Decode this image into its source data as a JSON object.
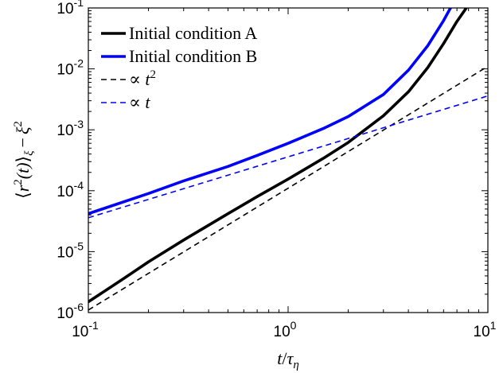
{
  "chart_data": {
    "type": "line",
    "title": "",
    "xlabel": "t/τη",
    "ylabel": "⟨r²(t)⟩ξ − ξ²",
    "x_scale": "log",
    "y_scale": "log",
    "xlim": [
      0.1,
      10
    ],
    "ylim": [
      1e-06,
      0.1
    ],
    "x_ticks": [
      {
        "value": 0.1,
        "base": "10",
        "exp": "-1"
      },
      {
        "value": 1,
        "base": "10",
        "exp": "0"
      },
      {
        "value": 10,
        "base": "10",
        "exp": "1"
      }
    ],
    "y_ticks": [
      {
        "value": 1e-06,
        "base": "10",
        "exp": "-6"
      },
      {
        "value": 1e-05,
        "base": "10",
        "exp": "-5"
      },
      {
        "value": 0.0001,
        "base": "10",
        "exp": "-4"
      },
      {
        "value": 0.001,
        "base": "10",
        "exp": "-3"
      },
      {
        "value": 0.01,
        "base": "10",
        "exp": "-2"
      },
      {
        "value": 0.1,
        "base": "10",
        "exp": "-1"
      }
    ],
    "grid": false,
    "legend_position": "top-left",
    "series": [
      {
        "name": "Initial condition A",
        "color": "#000000",
        "style": "solid",
        "x": [
          0.1,
          0.15,
          0.2,
          0.3,
          0.5,
          0.7,
          1.0,
          1.5,
          2.0,
          3.0,
          4.0,
          5.0,
          6.0,
          7.0,
          7.8
        ],
        "y": [
          1.5e-06,
          3.6e-06,
          6.8e-06,
          1.55e-05,
          4.2e-05,
          8e-05,
          0.000155,
          0.00034,
          0.00062,
          0.0017,
          0.0042,
          0.0105,
          0.026,
          0.06,
          0.1
        ]
      },
      {
        "name": "Initial condition B",
        "color": "#0000ff",
        "style": "solid",
        "x": [
          0.1,
          0.2,
          0.3,
          0.5,
          0.7,
          1.0,
          1.5,
          2.0,
          3.0,
          4.0,
          5.0,
          6.0,
          6.5
        ],
        "y": [
          4.2e-05,
          9e-05,
          0.000145,
          0.00025,
          0.00038,
          0.0006,
          0.00105,
          0.00165,
          0.0038,
          0.0095,
          0.024,
          0.062,
          0.1
        ]
      },
      {
        "name": "∝ t²",
        "color": "#000000",
        "style": "dashed",
        "x": [
          0.1,
          10
        ],
        "y": [
          1.1e-06,
          0.011
        ]
      },
      {
        "name": "∝ t",
        "color": "#0000ff",
        "style": "dashed",
        "x": [
          0.1,
          10
        ],
        "y": [
          3.6e-05,
          0.0036
        ]
      }
    ]
  },
  "legend": {
    "entries": [
      {
        "label": "Initial condition A",
        "color": "#000000",
        "style": "solid"
      },
      {
        "label": "Initial condition B",
        "color": "#0000ff",
        "style": "solid"
      },
      {
        "label": "∝ t",
        "sup": "2",
        "color": "#000000",
        "style": "dashed"
      },
      {
        "label": "∝ t",
        "sup": "",
        "color": "#0000ff",
        "style": "dashed"
      }
    ]
  },
  "labels": {
    "x_t": "t",
    "x_slash": "/",
    "x_tau": "τ",
    "x_sub": "η",
    "y_open": "⟨",
    "y_r": "r",
    "y_sup": "2",
    "y_paren": "(t)",
    "y_close": "⟩",
    "y_sub": "ξ",
    "y_minus": "−",
    "y_xi": "ξ",
    "y_sup2": "2"
  }
}
